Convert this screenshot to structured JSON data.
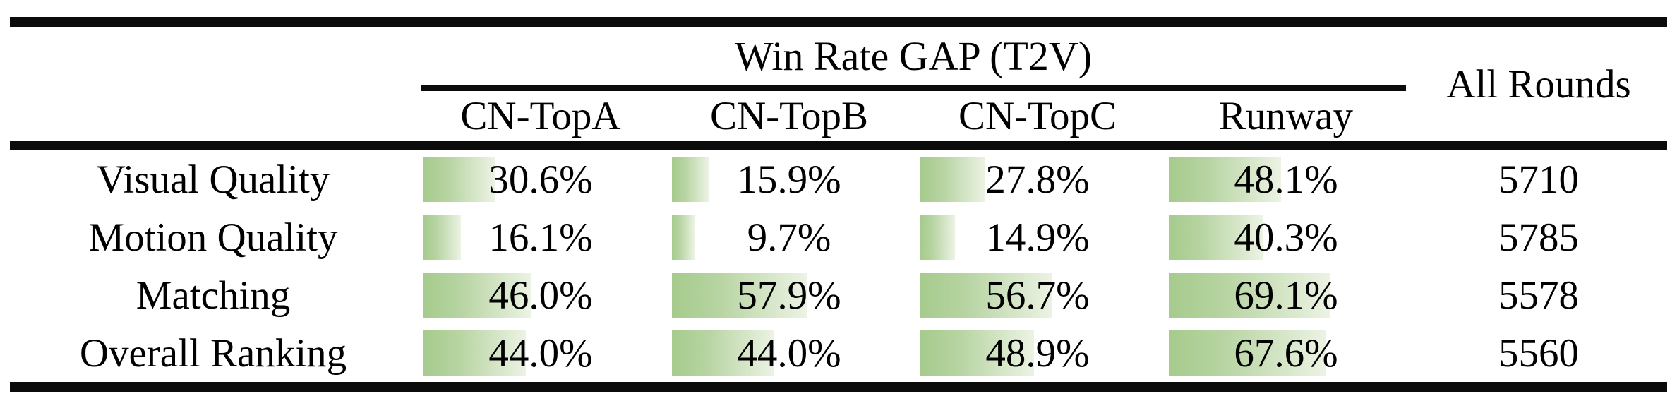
{
  "table": {
    "title": "Win Rate GAP (T2V)",
    "all_rounds_header": "All Rounds",
    "columns": [
      "CN-TopA",
      "CN-TopB",
      "CN-TopC",
      "Runway"
    ],
    "rows": [
      {
        "label": "Visual Quality",
        "values": [
          "30.6%",
          "15.9%",
          "27.8%",
          "48.1%"
        ],
        "pcts": [
          30.6,
          15.9,
          27.8,
          48.1
        ],
        "all_rounds": "5710"
      },
      {
        "label": "Motion Quality",
        "values": [
          "16.1%",
          "9.7%",
          "14.9%",
          "40.3%"
        ],
        "pcts": [
          16.1,
          9.7,
          14.9,
          40.3
        ],
        "all_rounds": "5785"
      },
      {
        "label": "Matching",
        "values": [
          "46.0%",
          "57.9%",
          "56.7%",
          "69.1%"
        ],
        "pcts": [
          46.0,
          57.9,
          56.7,
          69.1
        ],
        "all_rounds": "5578"
      },
      {
        "label": "Overall Ranking",
        "values": [
          "44.0%",
          "44.0%",
          "48.9%",
          "67.6%"
        ],
        "pcts": [
          44.0,
          44.0,
          48.9,
          67.6
        ],
        "all_rounds": "5560"
      }
    ],
    "colors": {
      "bar_gradient_start": "#a6cb8d",
      "bar_gradient_end": "#ecf3e4",
      "rule": "#0b0b0b",
      "background": "#ffffff",
      "text": "#000000"
    }
  },
  "chart_data": {
    "type": "table",
    "title": "Win Rate GAP (T2V)",
    "columns": [
      "CN-TopA",
      "CN-TopB",
      "CN-TopC",
      "Runway",
      "All Rounds"
    ],
    "row_labels": [
      "Visual Quality",
      "Motion Quality",
      "Matching",
      "Overall Ranking"
    ],
    "series": [
      {
        "name": "CN-TopA",
        "values": [
          30.6,
          16.1,
          46.0,
          44.0
        ]
      },
      {
        "name": "CN-TopB",
        "values": [
          15.9,
          9.7,
          57.9,
          44.0
        ]
      },
      {
        "name": "CN-TopC",
        "values": [
          27.8,
          14.9,
          56.7,
          48.9
        ]
      },
      {
        "name": "Runway",
        "values": [
          48.1,
          40.3,
          69.1,
          67.6
        ]
      }
    ],
    "all_rounds": [
      5710,
      5785,
      5578,
      5560
    ],
    "unit": "%",
    "layout_hints": "percent cells contain green left-to-right gradient data bars; bar width = value% of cell width; thick black rules at top, below header and bottom; shorter rule under spanning title"
  }
}
